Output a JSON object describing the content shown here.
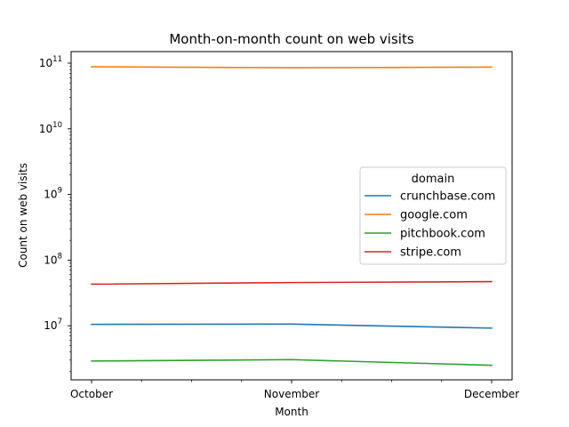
{
  "chart_data": {
    "type": "line",
    "title": "Month-on-month count on web visits",
    "xlabel": "Month",
    "ylabel": "Count on web visits",
    "yscale": "log",
    "categories": [
      "October",
      "November",
      "December"
    ],
    "ylim": [
      1500000,
      150000000000
    ],
    "yticks": [
      {
        "base": "10",
        "exp": "7",
        "value": 10000000
      },
      {
        "base": "10",
        "exp": "8",
        "value": 100000000
      },
      {
        "base": "10",
        "exp": "9",
        "value": 1000000000
      },
      {
        "base": "10",
        "exp": "10",
        "value": 10000000000
      },
      {
        "base": "10",
        "exp": "11",
        "value": 100000000000
      }
    ],
    "grid": false,
    "legend": {
      "title": "domain",
      "placement": "center-right"
    },
    "series": [
      {
        "name": "crunchbase.com",
        "color": "#1f77b4",
        "values": [
          10500000,
          10600000,
          9200000
        ]
      },
      {
        "name": "google.com",
        "color": "#ff7f0e",
        "values": [
          88000000000,
          85000000000,
          87000000000
        ]
      },
      {
        "name": "pitchbook.com",
        "color": "#2ca02c",
        "values": [
          2900000,
          3050000,
          2500000
        ]
      },
      {
        "name": "stripe.com",
        "color": "#d62728",
        "values": [
          43000000,
          45500000,
          47000000
        ]
      }
    ]
  }
}
